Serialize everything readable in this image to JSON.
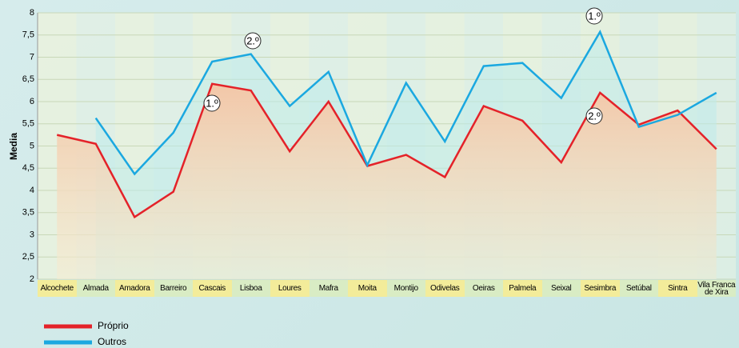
{
  "chart_data": {
    "type": "line",
    "y_label": "Media",
    "categories": [
      "Alcochete",
      "Almada",
      "Amadora",
      "Barreiro",
      "Cascais",
      "Lisboa",
      "Loures",
      "Mafra",
      "Moita",
      "Montijo",
      "Odivelas",
      "Oeiras",
      "Palmela",
      "Seixal",
      "Sesimbra",
      "Setúbal",
      "Sintra",
      "Vila Franca de Xira"
    ],
    "series": [
      {
        "name": "Próprio",
        "color": "#e42229",
        "values": [
          5.25,
          5.05,
          3.4,
          3.97,
          6.4,
          6.25,
          4.88,
          6.0,
          4.55,
          4.8,
          4.3,
          5.9,
          5.57,
          4.63,
          6.2,
          5.48,
          5.8,
          4.93
        ]
      },
      {
        "name": "Outros",
        "color": "#1ba8e0",
        "values": [
          null,
          5.63,
          4.37,
          5.3,
          6.9,
          7.07,
          5.9,
          6.67,
          4.57,
          6.42,
          5.1,
          6.8,
          6.87,
          6.08,
          7.57,
          5.43,
          5.7,
          6.2
        ]
      }
    ],
    "annotations": [
      "1.º",
      "2.º",
      "1.º",
      "2.º"
    ],
    "ylim": [
      2,
      8
    ],
    "yticks": [
      2,
      {
        "value": 2.5,
        "label": "2,5"
      },
      3,
      {
        "value": 3.5,
        "label": "3,5"
      },
      4,
      {
        "value": 4.5,
        "label": "4,5"
      },
      5,
      {
        "value": 5.5,
        "label": "5,5"
      },
      6,
      {
        "value": 6.5,
        "label": "6,5"
      },
      7,
      {
        "value": 7.5,
        "label": "7,5"
      },
      8
    ],
    "grid": true
  }
}
